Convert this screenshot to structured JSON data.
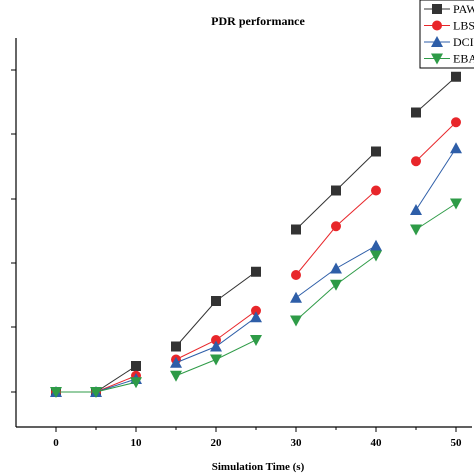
{
  "chart_data": {
    "type": "line",
    "title": "PDR performance",
    "xlabel": "Simulation Time (s)",
    "ylabel": "",
    "x_ticks": [
      "0",
      "10",
      "20",
      "30",
      "40",
      "50"
    ],
    "xlim": [
      -5,
      52
    ],
    "ylim": [
      0,
      1
    ],
    "legend_position": "top-right",
    "series": [
      {
        "name": "PAW",
        "color": "#333333",
        "marker": "square",
        "segments": [
          {
            "x": [
              0,
              5,
              10
            ],
            "y": [
              0.0,
              0.0,
              0.04
            ]
          },
          {
            "x": [
              15,
              20,
              25
            ],
            "y": [
              0.07,
              0.14,
              0.185
            ]
          },
          {
            "x": [
              30,
              35,
              40
            ],
            "y": [
              0.25,
              0.31,
              0.37
            ]
          },
          {
            "x": [
              45,
              50
            ],
            "y": [
              0.43,
              0.485
            ]
          }
        ]
      },
      {
        "name": "LBS",
        "color": "#e8262a",
        "marker": "circle",
        "segments": [
          {
            "x": [
              0,
              5,
              10
            ],
            "y": [
              0.0,
              0.0,
              0.025
            ]
          },
          {
            "x": [
              15,
              20,
              25
            ],
            "y": [
              0.05,
              0.08,
              0.125
            ]
          },
          {
            "x": [
              30,
              35,
              40
            ],
            "y": [
              0.18,
              0.255,
              0.31
            ]
          },
          {
            "x": [
              45,
              50
            ],
            "y": [
              0.355,
              0.415
            ]
          }
        ]
      },
      {
        "name": "DCI",
        "color": "#2e5ea8",
        "marker": "triangle-up",
        "segments": [
          {
            "x": [
              0,
              5,
              10
            ],
            "y": [
              0.0,
              0.0,
              0.02
            ]
          },
          {
            "x": [
              15,
              20,
              25
            ],
            "y": [
              0.045,
              0.07,
              0.115
            ]
          },
          {
            "x": [
              30,
              35,
              40
            ],
            "y": [
              0.145,
              0.19,
              0.225
            ]
          },
          {
            "x": [
              45,
              50
            ],
            "y": [
              0.28,
              0.375
            ]
          }
        ]
      },
      {
        "name": "EBA",
        "color": "#2e9b47",
        "marker": "triangle-down",
        "segments": [
          {
            "x": [
              0,
              5,
              10
            ],
            "y": [
              0.0,
              0.0,
              0.015
            ]
          },
          {
            "x": [
              15,
              20,
              25
            ],
            "y": [
              0.025,
              0.05,
              0.08
            ]
          },
          {
            "x": [
              30,
              35,
              40
            ],
            "y": [
              0.11,
              0.165,
              0.21
            ]
          },
          {
            "x": [
              45,
              50
            ],
            "y": [
              0.25,
              0.29
            ]
          }
        ]
      }
    ]
  }
}
